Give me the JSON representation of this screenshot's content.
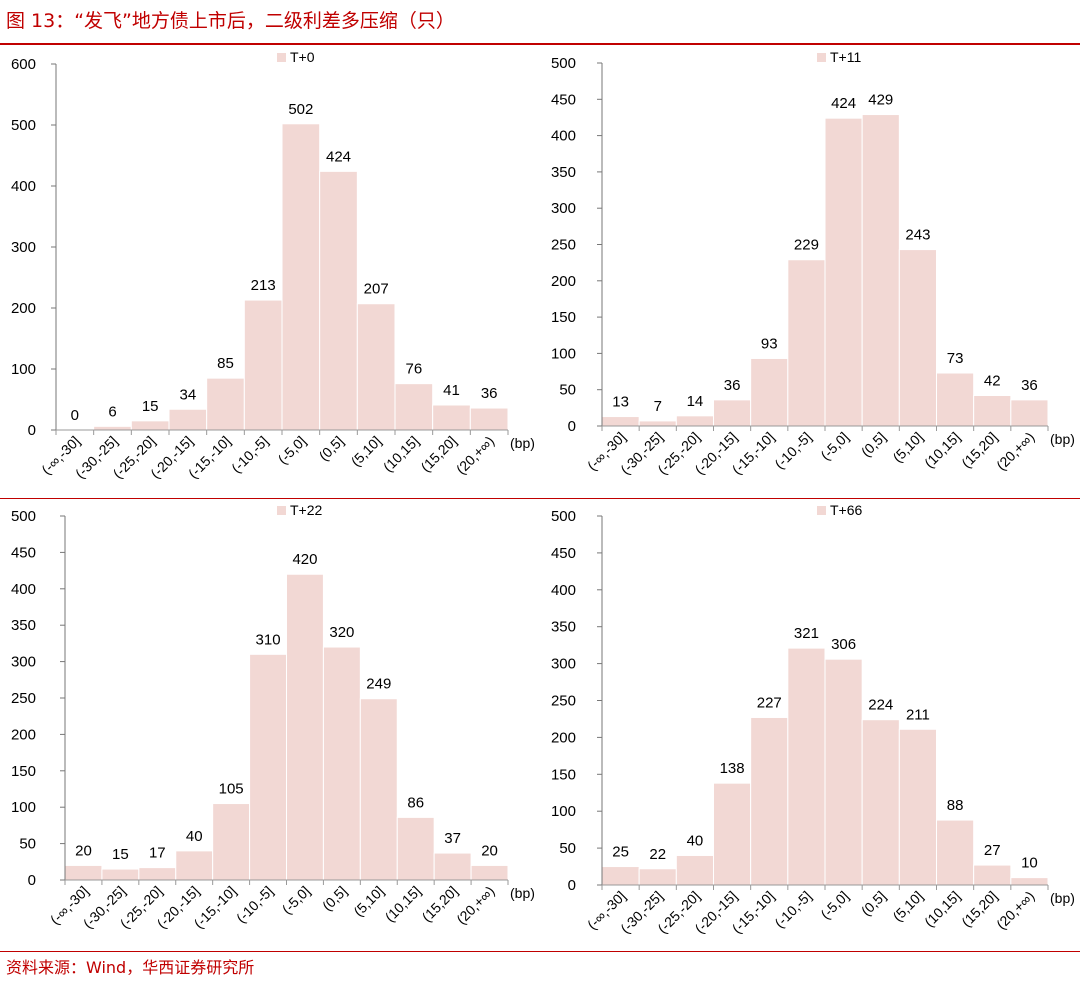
{
  "figure": {
    "title": "图 13：“发飞”地方债上市后，二级利差多压缩（只）",
    "source": "资料来源：Wind，华西证券研究所",
    "accent_color": "#c00000",
    "bar_color": "#f2d8d4",
    "bar_edge_color": "#ffffff"
  },
  "chart_data": [
    {
      "type": "bar",
      "title": "",
      "legend": "T+0",
      "legend_position": "top-center",
      "unit_label": "(bp)",
      "categories": [
        "(-∞,-30]",
        "(-30,-25]",
        "(-25,-20]",
        "(-20,-15]",
        "(-15,-10]",
        "(-10,-5]",
        "(-5,0]",
        "(0,5]",
        "(5,10]",
        "(10,15]",
        "(15,20]",
        "(20,+∞)"
      ],
      "values": [
        0,
        6,
        15,
        34,
        85,
        213,
        502,
        424,
        207,
        76,
        41,
        36
      ],
      "ylim": [
        0,
        600
      ],
      "yticks": [
        0,
        100,
        200,
        300,
        400,
        500,
        600
      ],
      "grid": false
    },
    {
      "type": "bar",
      "title": "",
      "legend": "T+11",
      "legend_position": "top-center",
      "unit_label": "(bp)",
      "categories": [
        "(-∞,-30]",
        "(-30,-25]",
        "(-25,-20]",
        "(-20,-15]",
        "(-15,-10]",
        "(-10,-5]",
        "(-5,0]",
        "(0,5]",
        "(5,10]",
        "(10,15]",
        "(15,20]",
        "(20,+∞)"
      ],
      "values": [
        13,
        7,
        14,
        36,
        93,
        229,
        424,
        429,
        243,
        73,
        42,
        36
      ],
      "ylim": [
        0,
        500
      ],
      "yticks": [
        0,
        50,
        100,
        150,
        200,
        250,
        300,
        350,
        400,
        450,
        500
      ],
      "grid": false
    },
    {
      "type": "bar",
      "title": "",
      "legend": "T+22",
      "legend_position": "top-center",
      "unit_label": "(bp)",
      "categories": [
        "(-∞,-30]",
        "(-30,-25]",
        "(-25,-20]",
        "(-20,-15]",
        "(-15,-10]",
        "(-10,-5]",
        "(-5,0]",
        "(0,5]",
        "(5,10]",
        "(10,15]",
        "(15,20]",
        "(20,+∞)"
      ],
      "values": [
        20,
        15,
        17,
        40,
        105,
        310,
        420,
        320,
        249,
        86,
        37,
        20
      ],
      "ylim": [
        0,
        500
      ],
      "yticks": [
        0,
        50,
        100,
        150,
        200,
        250,
        300,
        350,
        400,
        450,
        500
      ],
      "grid": false
    },
    {
      "type": "bar",
      "title": "",
      "legend": "T+66",
      "legend_position": "top-center",
      "unit_label": "(bp)",
      "categories": [
        "(-∞,-30]",
        "(-30,-25]",
        "(-25,-20]",
        "(-20,-15]",
        "(-15,-10]",
        "(-10,-5]",
        "(-5,0]",
        "(0,5]",
        "(5,10]",
        "(10,15]",
        "(15,20]",
        "(20,+∞)"
      ],
      "values": [
        25,
        22,
        40,
        138,
        227,
        321,
        306,
        224,
        211,
        88,
        27,
        10
      ],
      "ylim": [
        0,
        500
      ],
      "yticks": [
        0,
        50,
        100,
        150,
        200,
        250,
        300,
        350,
        400,
        450,
        500
      ],
      "grid": false
    }
  ]
}
